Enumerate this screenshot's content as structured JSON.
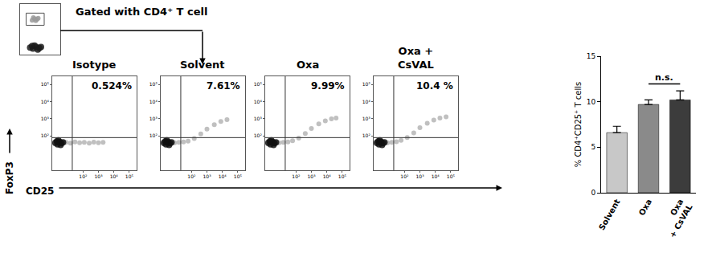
{
  "chart_data": [
    {
      "type": "scatter",
      "title": "Gated with CD4⁺ T cell",
      "tick_labels": false,
      "xlim": [
        0,
        100
      ],
      "ylim": [
        0,
        100
      ],
      "gate": {
        "x": [
          15,
          60
        ],
        "y": [
          58,
          82
        ]
      },
      "series": [
        {
          "color": "#9a9a9a",
          "x": [
            30,
            36,
            42,
            33,
            39,
            45
          ],
          "y": [
            68,
            71,
            70,
            73,
            67,
            72
          ]
        },
        {
          "color": "#1a1a1a",
          "x": [
            25,
            32,
            40,
            48,
            36,
            44,
            30,
            52
          ],
          "y": [
            14,
            12,
            15,
            13,
            18,
            10,
            17,
            15
          ]
        }
      ]
    },
    {
      "type": "scatter",
      "title": "Isotype",
      "label": "0.524%",
      "xlabel": "CD25",
      "ylabel": "FoxP3",
      "log": true,
      "xlim": [
        1,
        300000
      ],
      "ylim": [
        1,
        300000
      ],
      "xticks": [
        {
          "value": 100,
          "label": "10²"
        },
        {
          "value": 1000,
          "label": "10³"
        },
        {
          "value": 10000,
          "label": "10⁴"
        },
        {
          "value": 100000,
          "label": "10⁵"
        }
      ],
      "yticks": [
        {
          "value": 100,
          "label": "10²"
        },
        {
          "value": 1000,
          "label": "10³"
        },
        {
          "value": 10000,
          "label": "10⁴"
        },
        {
          "value": 100000,
          "label": "10⁵"
        }
      ],
      "quadrant": {
        "x": 20,
        "y": 80
      },
      "series": [
        {
          "color": "#b5b5b5",
          "x": [
            8,
            15,
            30,
            60,
            120,
            250,
            500,
            1000,
            2000
          ],
          "y": [
            42,
            38,
            45,
            40,
            42,
            38,
            44,
            40,
            42
          ]
        },
        {
          "color": "#111111",
          "x": [
            1.6,
            2.2,
            3,
            4,
            2.5,
            3.5,
            2,
            5
          ],
          "y": [
            40,
            32,
            45,
            38,
            55,
            30,
            48,
            42
          ]
        }
      ]
    },
    {
      "type": "scatter",
      "title": "Solvent",
      "label": "7.61%",
      "log": true,
      "xlim": [
        1,
        300000
      ],
      "ylim": [
        1,
        300000
      ],
      "xticks": [
        {
          "value": 100,
          "label": "10²"
        },
        {
          "value": 1000,
          "label": "10³"
        },
        {
          "value": 10000,
          "label": "10⁴"
        },
        {
          "value": 100000,
          "label": "10⁵"
        }
      ],
      "yticks": [
        {
          "value": 100,
          "label": "10²"
        },
        {
          "value": 1000,
          "label": "10³"
        },
        {
          "value": 10000,
          "label": "10⁴"
        },
        {
          "value": 100000,
          "label": "10⁵"
        }
      ],
      "quadrant": {
        "x": 20,
        "y": 80
      },
      "series": [
        {
          "color": "#b5b5b5",
          "x": [
            8,
            15,
            30,
            60,
            150,
            400,
            1000,
            3000,
            8000,
            20000
          ],
          "y": [
            40,
            42,
            45,
            50,
            70,
            130,
            250,
            450,
            700,
            900
          ]
        },
        {
          "color": "#111111",
          "x": [
            1.6,
            2.2,
            3,
            4,
            2.5,
            3.5,
            2,
            5
          ],
          "y": [
            40,
            32,
            45,
            38,
            55,
            30,
            48,
            42
          ]
        }
      ]
    },
    {
      "type": "scatter",
      "title": "Oxa",
      "label": "9.99%",
      "log": true,
      "xlim": [
        1,
        300000
      ],
      "ylim": [
        1,
        300000
      ],
      "xticks": [
        {
          "value": 100,
          "label": "10²"
        },
        {
          "value": 1000,
          "label": "10³"
        },
        {
          "value": 10000,
          "label": "10⁴"
        },
        {
          "value": 100000,
          "label": "10⁵"
        }
      ],
      "yticks": [
        {
          "value": 100,
          "label": "10²"
        },
        {
          "value": 1000,
          "label": "10³"
        },
        {
          "value": 10000,
          "label": "10⁴"
        },
        {
          "value": 100000,
          "label": "10⁵"
        }
      ],
      "quadrant": {
        "x": 20,
        "y": 80
      },
      "series": [
        {
          "color": "#b5b5b5",
          "x": [
            8,
            15,
            30,
            60,
            150,
            400,
            1000,
            3000,
            8000,
            20000,
            40000
          ],
          "y": [
            40,
            42,
            45,
            52,
            75,
            140,
            270,
            500,
            750,
            1000,
            1100
          ]
        },
        {
          "color": "#111111",
          "x": [
            1.6,
            2.2,
            3,
            4,
            2.5,
            3.5,
            2,
            5
          ],
          "y": [
            40,
            32,
            45,
            38,
            55,
            30,
            48,
            42
          ]
        }
      ]
    },
    {
      "type": "scatter",
      "title": "Oxa +\nCsVAL",
      "label": "10.4 %",
      "log": true,
      "xlim": [
        1,
        300000
      ],
      "ylim": [
        1,
        300000
      ],
      "xticks": [
        {
          "value": 100,
          "label": "10²"
        },
        {
          "value": 1000,
          "label": "10³"
        },
        {
          "value": 10000,
          "label": "10⁴"
        },
        {
          "value": 100000,
          "label": "10⁵"
        }
      ],
      "yticks": [
        {
          "value": 100,
          "label": "10²"
        },
        {
          "value": 1000,
          "label": "10³"
        },
        {
          "value": 10000,
          "label": "10⁴"
        },
        {
          "value": 100000,
          "label": "10⁵"
        }
      ],
      "quadrant": {
        "x": 20,
        "y": 80
      },
      "series": [
        {
          "color": "#b5b5b5",
          "x": [
            8,
            15,
            30,
            60,
            150,
            400,
            1000,
            3000,
            8000,
            20000,
            50000
          ],
          "y": [
            40,
            42,
            46,
            55,
            80,
            150,
            300,
            550,
            850,
            1100,
            1300
          ]
        },
        {
          "color": "#111111",
          "x": [
            1.6,
            2.2,
            3,
            4,
            2.5,
            3.5,
            2,
            5
          ],
          "y": [
            40,
            32,
            45,
            38,
            55,
            30,
            48,
            42
          ]
        }
      ]
    },
    {
      "type": "bar",
      "categories": [
        "Solvent",
        "Oxa",
        "Oxa\n+ CsVAL"
      ],
      "values": [
        6.6,
        9.7,
        10.2
      ],
      "errors": [
        0.7,
        0.5,
        1.0
      ],
      "colors": [
        "#c8c8c8",
        "#8a8a8a",
        "#3c3c3c"
      ],
      "ylim": [
        0,
        15
      ],
      "yticks": [
        0,
        5,
        10,
        15
      ],
      "ylabel": "% CD4⁺CD25⁺ T cells",
      "comparisons": [
        {
          "text": "n.s.",
          "between": [
            "Oxa",
            "Oxa\n+ CsVAL"
          ]
        }
      ]
    }
  ]
}
